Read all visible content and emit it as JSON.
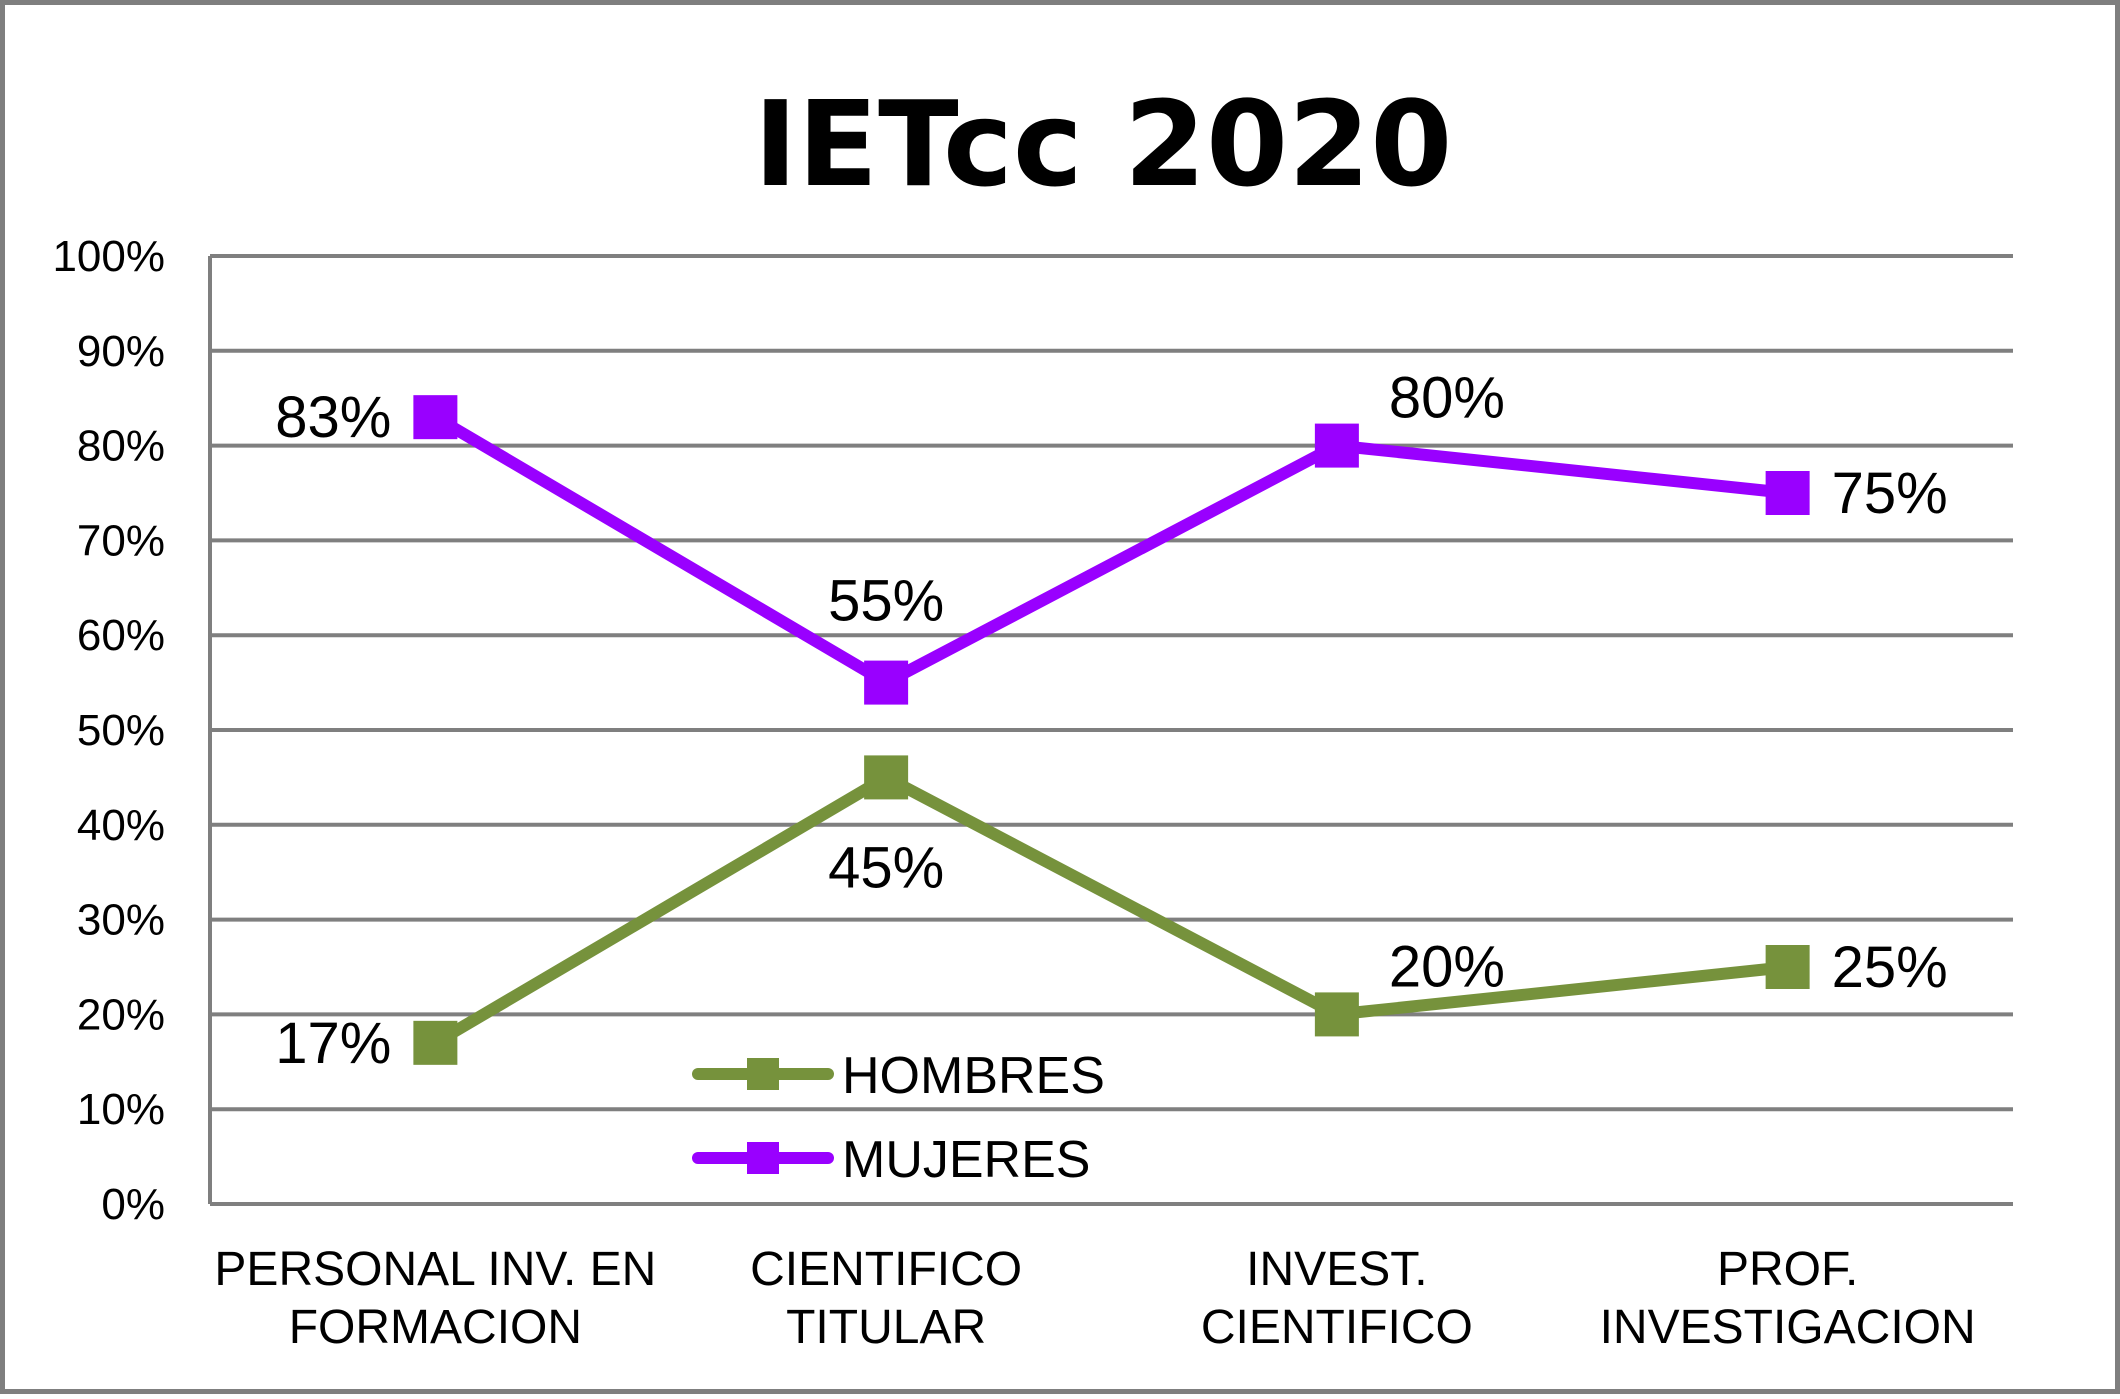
{
  "chart_data": {
    "type": "line",
    "title": "IETcc 2020",
    "categories": [
      [
        "PERSONAL INV. EN",
        "FORMACION"
      ],
      [
        "CIENTIFICO",
        "TITULAR"
      ],
      [
        "INVEST.",
        "CIENTIFICO"
      ],
      [
        "PROF.",
        "INVESTIGACION"
      ]
    ],
    "series": [
      {
        "name": "HOMBRES",
        "color": "#76923c",
        "values": [
          17,
          45,
          20,
          25
        ],
        "labels": [
          "17%",
          "45%",
          "20%",
          "25%"
        ],
        "label_positions": [
          "left",
          "below",
          "above-right",
          "right"
        ]
      },
      {
        "name": "MUJERES",
        "color": "#9900ff",
        "values": [
          83,
          55,
          80,
          75
        ],
        "labels": [
          "83%",
          "55%",
          "80%",
          "75%"
        ],
        "label_positions": [
          "left",
          "above",
          "above-right",
          "right"
        ]
      }
    ],
    "ylim": [
      0,
      100
    ],
    "y_ticks": [
      "0%",
      "10%",
      "20%",
      "30%",
      "40%",
      "50%",
      "60%",
      "70%",
      "80%",
      "90%",
      "100%"
    ],
    "grid": true,
    "legend_position": "bottom-center-inside",
    "xlabel": "",
    "ylabel": ""
  },
  "colors": {
    "grid": "#7f7f7f",
    "frame": "#7f7f7f",
    "text": "#000000"
  }
}
